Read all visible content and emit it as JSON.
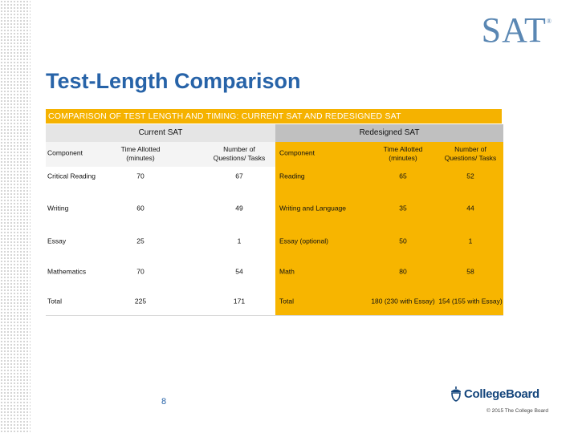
{
  "logo": {
    "text": "SAT",
    "mark": "®"
  },
  "title": "Test-Length Comparison",
  "banner": "COMPARISON OF TEST LENGTH AND TIMING: CURRENT SAT AND REDESIGNED SAT",
  "groups": {
    "current": "Current SAT",
    "redesigned": "Redesigned SAT"
  },
  "headers": {
    "component": "Component",
    "time": "Time Allotted (minutes)",
    "questions": "Number of Questions/ Tasks",
    "component2": "Component",
    "time2": "Time Allotted (minutes)",
    "questions2": "Number of Questions/ Tasks"
  },
  "rows": [
    {
      "c1": "Critical Reading",
      "t1": "70",
      "q1": "67",
      "c2": "Reading",
      "t2": "65",
      "q2": "52"
    },
    {
      "c1": "Writing",
      "t1": "60",
      "q1": "49",
      "c2": "Writing and Language",
      "t2": "35",
      "q2": "44"
    },
    {
      "c1": "Essay",
      "t1": "25",
      "q1": "1",
      "c2": "Essay (optional)",
      "t2": "50",
      "q2": "1"
    },
    {
      "c1": "Mathematics",
      "t1": "70",
      "q1": "54",
      "c2": "Math",
      "t2": "80",
      "q2": "58"
    },
    {
      "c1": "Total",
      "t1": "225",
      "q1": "171",
      "c2": "Total",
      "t2": "180 (230 with Essay)",
      "q2": "154 (155 with Essay)"
    }
  ],
  "page_number": "8",
  "footer": {
    "brand": "CollegeBoard",
    "copyright": "© 2015 The College Board"
  },
  "colors": {
    "accent": "#f5b200",
    "title": "#2763a8",
    "brand": "#15467c"
  }
}
